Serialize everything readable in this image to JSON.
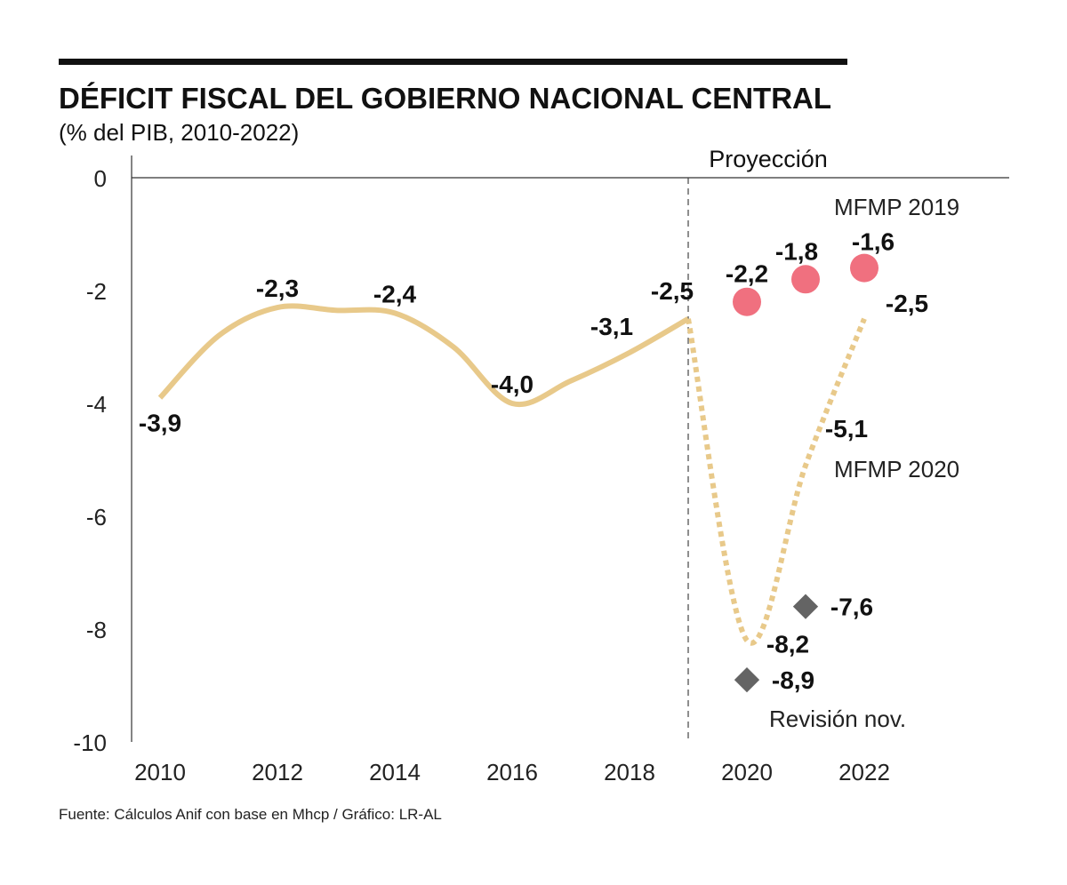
{
  "chart_data": {
    "type": "line",
    "title": "DÉFICIT FISCAL DEL GOBIERNO NACIONAL CENTRAL",
    "subtitle": "(% del PIB, 2010-2022)",
    "ylim": [
      -10,
      0
    ],
    "yticks": [
      "0",
      "-2",
      "-4",
      "-6",
      "-8",
      "-10"
    ],
    "xticks": [
      "2010",
      "2012",
      "2014",
      "2016",
      "2018",
      "2020",
      "2022"
    ],
    "xlim": [
      2010,
      2023.5
    ],
    "projection_label": "Proyección",
    "projection_start": 2019,
    "grid": false,
    "series": [
      {
        "style": "solid",
        "color": "#e8c98a",
        "x": [
          2010,
          2011,
          2012,
          2013,
          2014,
          2015,
          2016,
          2017,
          2018,
          2019
        ],
        "y": [
          -3.9,
          -2.8,
          -2.3,
          -2.35,
          -2.4,
          -3.0,
          -4.0,
          -3.6,
          -3.1,
          -2.5
        ],
        "labels": [
          {
            "x": 2010,
            "y": -3.9,
            "text": "-3,9"
          },
          {
            "x": 2012,
            "y": -2.3,
            "text": "-2,3"
          },
          {
            "x": 2014,
            "y": -2.4,
            "text": "-2,4"
          },
          {
            "x": 2016,
            "y": -4.0,
            "text": "-4,0"
          },
          {
            "x": 2018,
            "y": -3.1,
            "text": "-3,1"
          },
          {
            "x": 2019,
            "y": -2.5,
            "text": "-2,5"
          }
        ]
      },
      {
        "name": "MFMP 2020",
        "style": "dotted",
        "color": "#e8c98a",
        "x": [
          2019,
          2020,
          2021,
          2022
        ],
        "y": [
          -2.5,
          -8.2,
          -5.1,
          -2.5
        ],
        "labels": [
          {
            "x": 2020,
            "y": -8.2,
            "text": "-8,2"
          },
          {
            "x": 2021,
            "y": -5.1,
            "text": "-5,1"
          },
          {
            "x": 2022,
            "y": -2.5,
            "text": "-2,5"
          }
        ]
      },
      {
        "name": "MFMP 2019",
        "style": "circle",
        "color": "#f0707f",
        "x": [
          2020,
          2021,
          2022
        ],
        "y": [
          -2.2,
          -1.8,
          -1.6
        ],
        "labels": [
          {
            "x": 2020,
            "y": -2.2,
            "text": "-2,2"
          },
          {
            "x": 2021,
            "y": -1.8,
            "text": "-1,8"
          },
          {
            "x": 2022,
            "y": -1.6,
            "text": "-1,6"
          }
        ]
      },
      {
        "name": "Revisión nov.",
        "style": "diamond",
        "color": "#646464",
        "x": [
          2020,
          2021
        ],
        "y": [
          -8.9,
          -7.6
        ],
        "labels": [
          {
            "x": 2020,
            "y": -8.9,
            "text": "-8,9"
          },
          {
            "x": 2021,
            "y": -7.6,
            "text": "-7,6"
          }
        ]
      }
    ],
    "source": "Fuente: Cálculos Anif con base en Mhcp / Gráfico: LR-AL"
  }
}
